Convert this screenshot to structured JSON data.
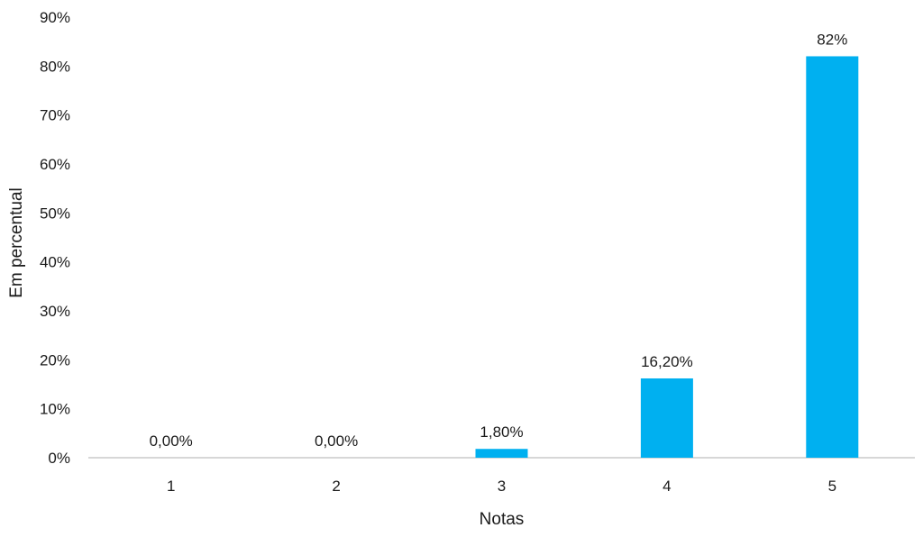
{
  "chart_data": {
    "type": "bar",
    "title": "",
    "xlabel": "Notas",
    "ylabel": "Em percentual",
    "categories": [
      "1",
      "2",
      "3",
      "4",
      "5"
    ],
    "values": [
      0.0,
      0.0,
      1.8,
      16.2,
      82.0
    ],
    "data_labels": [
      "0,00%",
      "0,00%",
      "1,80%",
      "16,20%",
      "82%"
    ],
    "ylim": [
      0,
      90
    ],
    "yticks": [
      0,
      10,
      20,
      30,
      40,
      50,
      60,
      70,
      80,
      90
    ],
    "ytick_labels": [
      "0%",
      "10%",
      "20%",
      "30%",
      "40%",
      "50%",
      "60%",
      "70%",
      "80%",
      "90%"
    ],
    "grid": false,
    "legend": "none",
    "bar_color": "#00B0F0",
    "axis_color": "#BFBFBF"
  }
}
